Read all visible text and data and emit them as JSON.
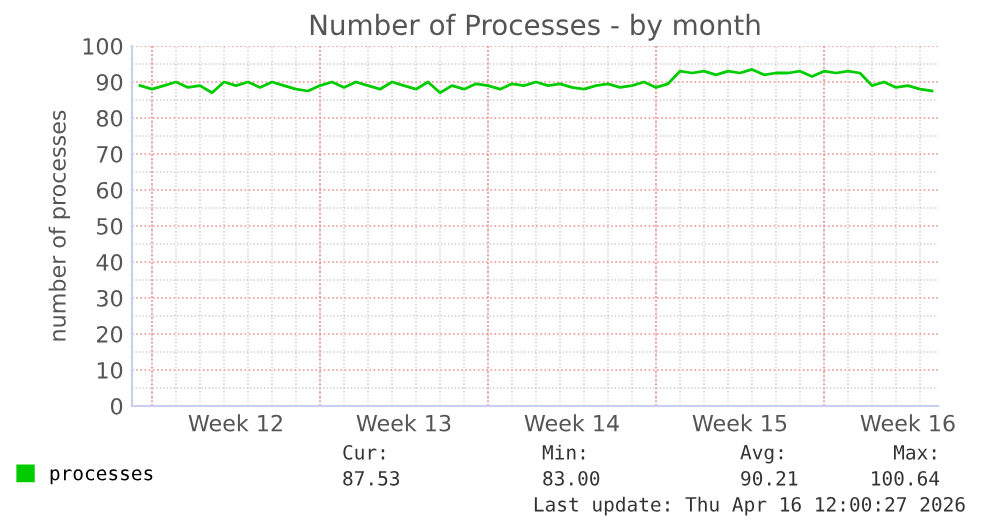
{
  "chart_data": {
    "type": "line",
    "title": "Number of Processes - by month",
    "ylabel": "number of processes",
    "x": [
      "2026-03-14T12:00",
      "2026-03-15T00:00",
      "2026-03-15T12:00",
      "2026-03-16T00:00",
      "2026-03-16T12:00",
      "2026-03-17T00:00",
      "2026-03-17T12:00",
      "2026-03-18T00:00",
      "2026-03-18T12:00",
      "2026-03-19T00:00",
      "2026-03-19T12:00",
      "2026-03-20T00:00",
      "2026-03-20T12:00",
      "2026-03-21T00:00",
      "2026-03-21T12:00",
      "2026-03-22T00:00",
      "2026-03-22T12:00",
      "2026-03-23T00:00",
      "2026-03-23T12:00",
      "2026-03-24T00:00",
      "2026-03-24T12:00",
      "2026-03-25T00:00",
      "2026-03-25T12:00",
      "2026-03-26T00:00",
      "2026-03-26T12:00",
      "2026-03-27T00:00",
      "2026-03-27T12:00",
      "2026-03-28T00:00",
      "2026-03-28T12:00",
      "2026-03-29T00:00",
      "2026-03-29T12:00",
      "2026-03-30T00:00",
      "2026-03-30T12:00",
      "2026-03-31T00:00",
      "2026-03-31T12:00",
      "2026-04-01T00:00",
      "2026-04-01T12:00",
      "2026-04-02T00:00",
      "2026-04-02T12:00",
      "2026-04-03T00:00",
      "2026-04-03T12:00",
      "2026-04-04T00:00",
      "2026-04-04T12:00",
      "2026-04-05T00:00",
      "2026-04-05T12:00",
      "2026-04-06T00:00",
      "2026-04-06T12:00",
      "2026-04-07T00:00",
      "2026-04-07T12:00",
      "2026-04-08T00:00",
      "2026-04-08T12:00",
      "2026-04-09T00:00",
      "2026-04-09T12:00",
      "2026-04-10T00:00",
      "2026-04-10T12:00",
      "2026-04-11T00:00",
      "2026-04-11T12:00",
      "2026-04-12T00:00",
      "2026-04-12T12:00",
      "2026-04-13T00:00",
      "2026-04-13T12:00",
      "2026-04-14T00:00",
      "2026-04-14T12:00",
      "2026-04-15T00:00",
      "2026-04-15T12:00",
      "2026-04-16T00:00",
      "2026-04-16T12:00"
    ],
    "series": [
      {
        "name": "processes",
        "color": "#00cc00",
        "values": [
          89,
          88,
          89,
          90,
          88.5,
          89,
          87,
          90,
          89,
          90,
          88.5,
          90,
          89,
          88,
          87.5,
          89,
          90,
          88.5,
          90,
          89,
          88,
          90,
          89,
          88,
          90,
          87,
          89,
          88,
          89.5,
          89,
          88,
          89.5,
          89,
          90,
          89,
          89.5,
          88.5,
          88,
          89,
          89.5,
          88.5,
          89,
          90,
          88.5,
          89.5,
          93,
          92.5,
          93,
          92,
          93,
          92.5,
          93.5,
          92,
          92.5,
          92.5,
          93,
          91.5,
          93,
          92.5,
          93,
          92.5,
          89,
          90,
          88.5,
          89,
          88,
          87.5
        ]
      }
    ],
    "xlim": [
      "2026-03-14T04:00",
      "2026-04-16T18:00"
    ],
    "xticks": [
      {
        "value": "2026-03-15",
        "label": null
      },
      {
        "value": "2026-03-18T12:00",
        "label": "Week 12"
      },
      {
        "value": "2026-03-22",
        "label": null
      },
      {
        "value": "2026-03-25T12:00",
        "label": "Week 13"
      },
      {
        "value": "2026-03-29",
        "label": null
      },
      {
        "value": "2026-04-01T12:00",
        "label": "Week 14"
      },
      {
        "value": "2026-04-05",
        "label": null
      },
      {
        "value": "2026-04-08T12:00",
        "label": "Week 15"
      },
      {
        "value": "2026-04-12",
        "label": null
      },
      {
        "value": "2026-04-15T12:00",
        "label": "Week 16"
      }
    ],
    "ylim": [
      0,
      100
    ],
    "yticks": [
      0,
      10,
      20,
      30,
      40,
      50,
      60,
      70,
      80,
      90,
      100
    ],
    "grid": true,
    "legend": "bottom",
    "marker": "none",
    "line_style": "solid",
    "annotations": [
      "Cur:",
      "Min:",
      "Avg:",
      "Max:",
      "87.53",
      "83.00",
      "90.21",
      "100.64",
      "Last update: Thu Apr 16 12:00:27 2026"
    ]
  }
}
